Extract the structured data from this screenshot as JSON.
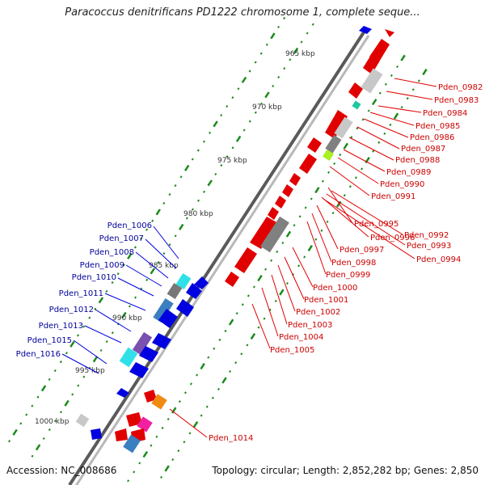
{
  "title": "Paracoccus denitrificans PD1222 chromosome 1, complete seque...",
  "footer": {
    "accession": "Accession: NC_008686",
    "topology": "Topology: circular; Length: 2,852,282 bp; Genes: 2,850"
  },
  "colors": {
    "backbone": "#555555",
    "forward": "#0000e0",
    "reverse": "#e00000",
    "tick": "#1a8a1a",
    "label_forward": "#00009a",
    "label_reverse": "#cc0000"
  },
  "kbp_labels": [
    "965 kbp",
    "970 kbp",
    "975 kbp",
    "980 kbp",
    "985 kbp",
    "990 kbp",
    "995 kbp",
    "1000 kbp"
  ],
  "genes_forward": [
    "Pden_1006",
    "Pden_1007",
    "Pden_1008",
    "Pden_1009",
    "Pden_1010",
    "Pden_1011",
    "Pden_1012",
    "Pden_1013",
    "Pden_1015",
    "Pden_1016"
  ],
  "genes_reverse_upper": [
    "Pden_0982",
    "Pden_0983",
    "Pden_0984",
    "Pden_0985",
    "Pden_0986",
    "Pden_0987",
    "Pden_0988",
    "Pden_0989",
    "Pden_0990",
    "Pden_0991"
  ],
  "genes_reverse_middle": [
    "Pden_0995",
    "Pden_0992",
    "Pden_0996",
    "Pden_0993",
    "Pden_0997",
    "Pden_0994",
    "Pden_0998",
    "Pden_0999",
    "Pden_1000",
    "Pden_1001",
    "Pden_1002",
    "Pden_1003",
    "Pden_1004",
    "Pden_1005"
  ],
  "genes_other": [
    "Pden_1014"
  ]
}
